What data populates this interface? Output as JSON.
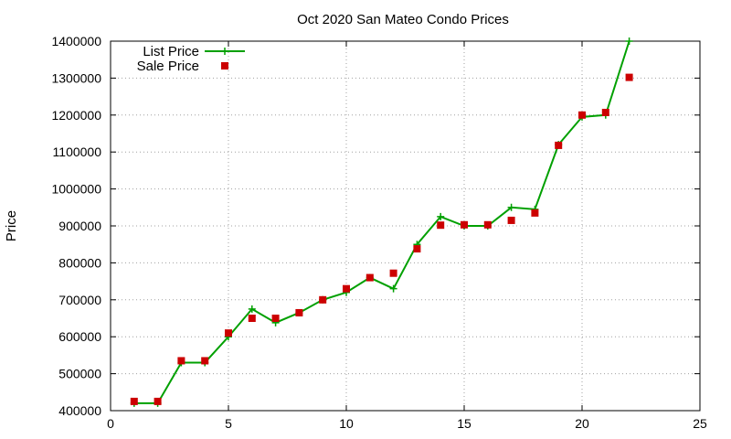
{
  "chart_data": {
    "type": "line",
    "title": "Oct 2020 San Mateo Condo Prices",
    "xlabel": "",
    "ylabel": "Price",
    "xlim": [
      0,
      25
    ],
    "ylim": [
      400000,
      1400000
    ],
    "xticks": [
      0,
      5,
      10,
      15,
      20,
      25
    ],
    "yticks": [
      400000,
      500000,
      600000,
      700000,
      800000,
      900000,
      1000000,
      1100000,
      1200000,
      1300000,
      1400000
    ],
    "grid": true,
    "legend_position": "top-left",
    "series": [
      {
        "name": "List Price",
        "style": "line-plus",
        "color": "#00a000",
        "x": [
          1,
          2,
          3,
          4,
          5,
          6,
          7,
          8,
          9,
          10,
          11,
          12,
          13,
          14,
          15,
          16,
          17,
          18,
          19,
          20,
          21,
          22
        ],
        "y": [
          420000,
          420000,
          530000,
          530000,
          600000,
          675000,
          638000,
          665000,
          700000,
          720000,
          760000,
          730000,
          850000,
          925000,
          900000,
          900000,
          950000,
          945000,
          1120000,
          1195000,
          1200000,
          1400000
        ]
      },
      {
        "name": "Sale Price",
        "style": "square",
        "color": "#cc0000",
        "x": [
          1,
          2,
          3,
          4,
          5,
          6,
          7,
          8,
          9,
          10,
          11,
          12,
          13,
          14,
          15,
          16,
          17,
          18,
          19,
          20,
          21,
          22
        ],
        "y": [
          425000,
          425000,
          535000,
          535000,
          610000,
          650000,
          650000,
          665000,
          700000,
          730000,
          760000,
          772000,
          838000,
          902000,
          903000,
          903000,
          915000,
          935000,
          1118000,
          1200000,
          1207000,
          1302000
        ]
      }
    ]
  }
}
